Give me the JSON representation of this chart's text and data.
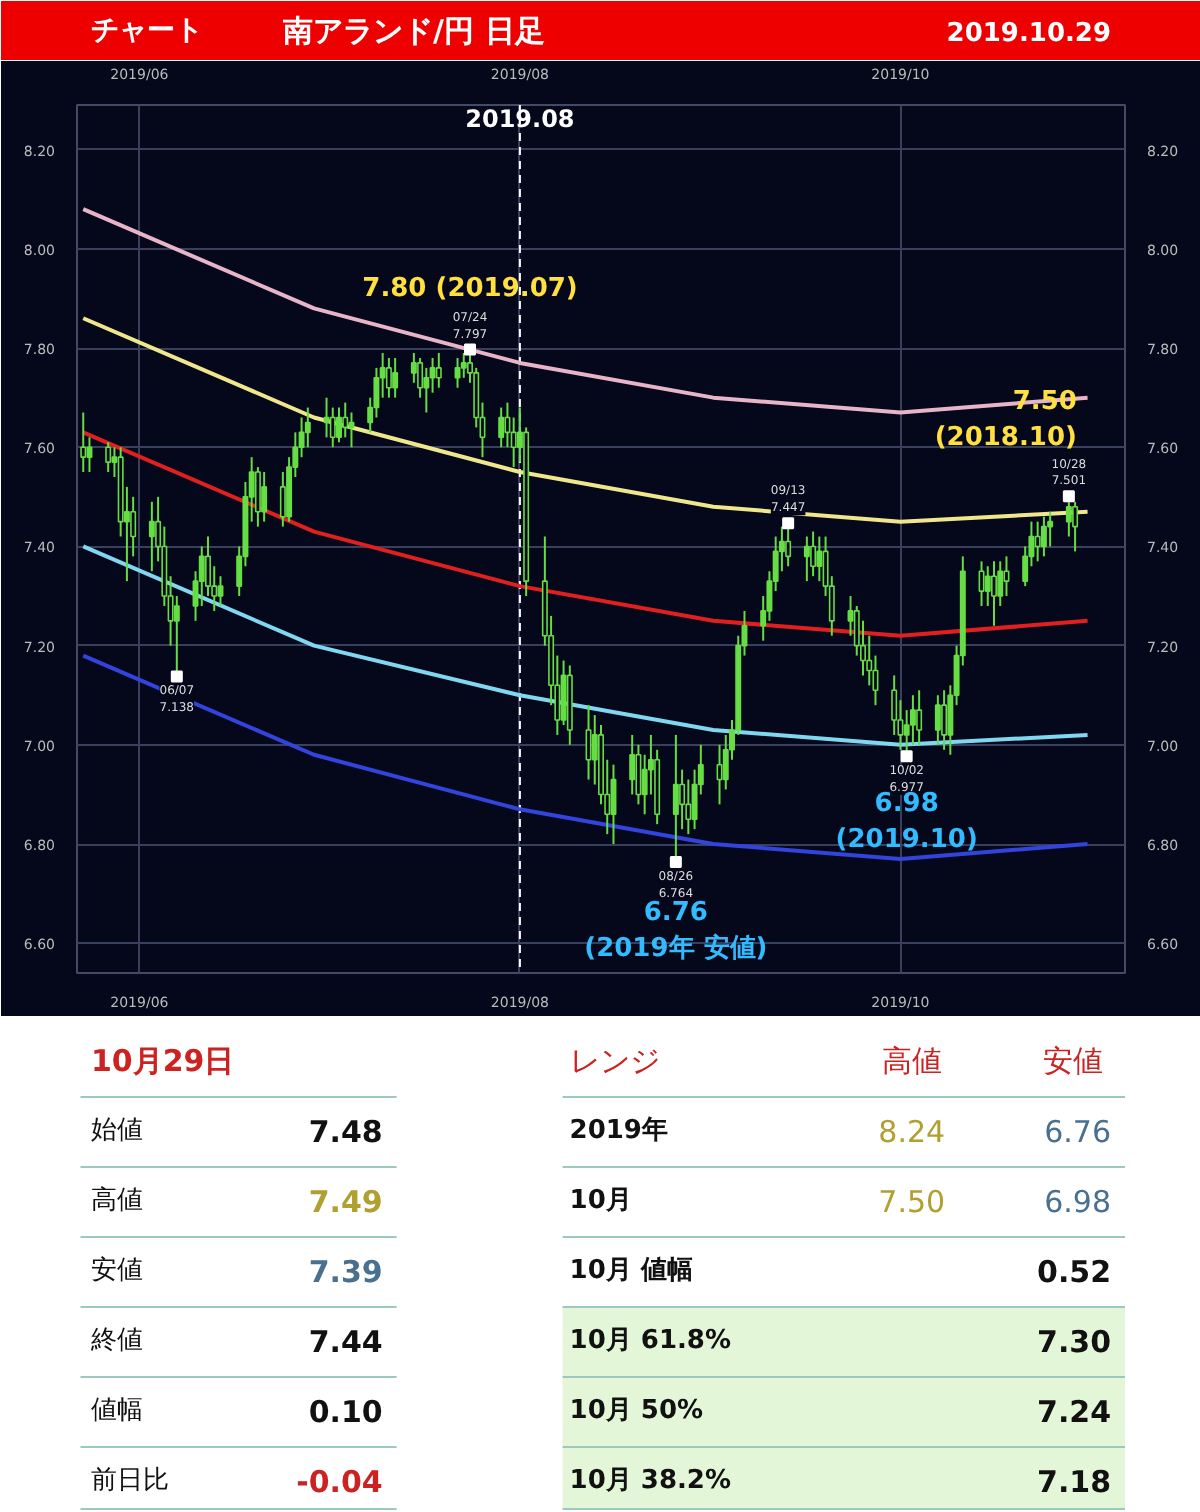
{
  "chart_data": [
    {
      "type": "candlestick",
      "title": "南アランド/円 日足",
      "subtitle": "2019.10.29",
      "color": "#66dd44",
      "x": [
        "2019-05-23",
        "2019-05-24",
        "2019-05-27",
        "2019-05-28",
        "2019-05-29",
        "2019-05-30",
        "2019-05-31",
        "2019-06-03",
        "2019-06-04",
        "2019-06-05",
        "2019-06-06",
        "2019-06-07",
        "2019-06-10",
        "2019-06-11",
        "2019-06-12",
        "2019-06-13",
        "2019-06-14",
        "2019-06-17",
        "2019-06-18",
        "2019-06-19",
        "2019-06-20",
        "2019-06-21",
        "2019-06-24",
        "2019-06-25",
        "2019-06-26",
        "2019-06-27",
        "2019-06-28",
        "2019-07-01",
        "2019-07-02",
        "2019-07-03",
        "2019-07-04",
        "2019-07-05",
        "2019-07-08",
        "2019-07-09",
        "2019-07-10",
        "2019-07-11",
        "2019-07-12",
        "2019-07-15",
        "2019-07-16",
        "2019-07-17",
        "2019-07-18",
        "2019-07-19",
        "2019-07-22",
        "2019-07-23",
        "2019-07-24",
        "2019-07-25",
        "2019-07-26",
        "2019-07-29",
        "2019-07-30",
        "2019-07-31",
        "2019-08-01",
        "2019-08-02",
        "2019-08-05",
        "2019-08-06",
        "2019-08-07",
        "2019-08-08",
        "2019-08-09",
        "2019-08-12",
        "2019-08-13",
        "2019-08-14",
        "2019-08-15",
        "2019-08-16",
        "2019-08-19",
        "2019-08-20",
        "2019-08-21",
        "2019-08-22",
        "2019-08-23",
        "2019-08-26",
        "2019-08-27",
        "2019-08-28",
        "2019-08-29",
        "2019-08-30",
        "2019-09-02",
        "2019-09-03",
        "2019-09-04",
        "2019-09-05",
        "2019-09-06",
        "2019-09-09",
        "2019-09-10",
        "2019-09-11",
        "2019-09-12",
        "2019-09-13",
        "2019-09-16",
        "2019-09-17",
        "2019-09-18",
        "2019-09-19",
        "2019-09-20",
        "2019-09-23",
        "2019-09-24",
        "2019-09-25",
        "2019-09-26",
        "2019-09-27",
        "2019-09-30",
        "2019-10-01",
        "2019-10-02",
        "2019-10-03",
        "2019-10-04",
        "2019-10-07",
        "2019-10-08",
        "2019-10-09",
        "2019-10-10",
        "2019-10-11",
        "2019-10-14",
        "2019-10-15",
        "2019-10-16",
        "2019-10-17",
        "2019-10-18",
        "2019-10-21",
        "2019-10-22",
        "2019-10-23",
        "2019-10-24",
        "2019-10-25",
        "2019-10-28",
        "2019-10-29"
      ],
      "ohlc": [
        [
          7.6,
          7.67,
          7.55,
          7.58
        ],
        [
          7.58,
          7.62,
          7.55,
          7.6
        ],
        [
          7.6,
          7.61,
          7.55,
          7.57
        ],
        [
          7.57,
          7.6,
          7.54,
          7.58
        ],
        [
          7.58,
          7.6,
          7.42,
          7.45
        ],
        [
          7.45,
          7.52,
          7.33,
          7.47
        ],
        [
          7.47,
          7.5,
          7.38,
          7.42
        ],
        [
          7.42,
          7.49,
          7.35,
          7.45
        ],
        [
          7.45,
          7.5,
          7.37,
          7.4
        ],
        [
          7.4,
          7.44,
          7.28,
          7.3
        ],
        [
          7.3,
          7.34,
          7.2,
          7.25
        ],
        [
          7.25,
          7.3,
          7.138,
          7.28
        ],
        [
          7.28,
          7.35,
          7.25,
          7.33
        ],
        [
          7.33,
          7.4,
          7.28,
          7.38
        ],
        [
          7.38,
          7.42,
          7.3,
          7.32
        ],
        [
          7.32,
          7.36,
          7.27,
          7.3
        ],
        [
          7.3,
          7.34,
          7.28,
          7.32
        ],
        [
          7.32,
          7.4,
          7.3,
          7.38
        ],
        [
          7.38,
          7.53,
          7.36,
          7.5
        ],
        [
          7.5,
          7.58,
          7.45,
          7.55
        ],
        [
          7.55,
          7.56,
          7.44,
          7.47
        ],
        [
          7.47,
          7.55,
          7.45,
          7.52
        ],
        [
          7.52,
          7.55,
          7.44,
          7.46
        ],
        [
          7.46,
          7.58,
          7.45,
          7.56
        ],
        [
          7.56,
          7.63,
          7.54,
          7.6
        ],
        [
          7.6,
          7.66,
          7.58,
          7.63
        ],
        [
          7.63,
          7.68,
          7.6,
          7.65
        ],
        [
          7.65,
          7.7,
          7.62,
          7.66
        ],
        [
          7.66,
          7.68,
          7.6,
          7.62
        ],
        [
          7.62,
          7.68,
          7.61,
          7.66
        ],
        [
          7.66,
          7.69,
          7.62,
          7.64
        ],
        [
          7.64,
          7.67,
          7.6,
          7.65
        ],
        [
          7.65,
          7.7,
          7.63,
          7.68
        ],
        [
          7.68,
          7.76,
          7.66,
          7.74
        ],
        [
          7.74,
          7.79,
          7.7,
          7.76
        ],
        [
          7.76,
          7.78,
          7.7,
          7.72
        ],
        [
          7.72,
          7.78,
          7.7,
          7.75
        ],
        [
          7.75,
          7.79,
          7.73,
          7.77
        ],
        [
          7.77,
          7.78,
          7.7,
          7.72
        ],
        [
          7.72,
          7.76,
          7.67,
          7.74
        ],
        [
          7.74,
          7.78,
          7.71,
          7.76
        ],
        [
          7.76,
          7.79,
          7.72,
          7.74
        ],
        [
          7.74,
          7.78,
          7.72,
          7.76
        ],
        [
          7.76,
          7.79,
          7.74,
          7.77
        ],
        [
          7.77,
          7.797,
          7.73,
          7.75
        ],
        [
          7.75,
          7.76,
          7.64,
          7.66
        ],
        [
          7.66,
          7.69,
          7.58,
          7.62
        ],
        [
          7.62,
          7.68,
          7.6,
          7.66
        ],
        [
          7.66,
          7.69,
          7.6,
          7.63
        ],
        [
          7.63,
          7.66,
          7.56,
          7.6
        ],
        [
          7.6,
          7.68,
          7.57,
          7.63
        ],
        [
          7.63,
          7.64,
          7.3,
          7.33
        ],
        [
          7.33,
          7.42,
          7.2,
          7.22
        ],
        [
          7.22,
          7.26,
          7.08,
          7.12
        ],
        [
          7.12,
          7.18,
          7.02,
          7.05
        ],
        [
          7.05,
          7.17,
          7.04,
          7.14
        ],
        [
          7.14,
          7.16,
          7.0,
          7.03
        ],
        [
          7.03,
          7.08,
          6.93,
          6.97
        ],
        [
          6.97,
          7.06,
          6.92,
          7.02
        ],
        [
          7.02,
          7.04,
          6.88,
          6.9
        ],
        [
          6.9,
          6.97,
          6.82,
          6.86
        ],
        [
          6.86,
          6.96,
          6.8,
          6.93
        ],
        [
          6.93,
          7.02,
          6.9,
          6.98
        ],
        [
          6.98,
          7.0,
          6.88,
          6.9
        ],
        [
          6.9,
          6.98,
          6.86,
          6.95
        ],
        [
          6.95,
          7.02,
          6.9,
          6.97
        ],
        [
          6.97,
          6.99,
          6.84,
          6.86
        ],
        [
          6.86,
          7.02,
          6.764,
          6.92
        ],
        [
          6.92,
          6.95,
          6.83,
          6.88
        ],
        [
          6.88,
          6.93,
          6.82,
          6.85
        ],
        [
          6.85,
          6.95,
          6.83,
          6.92
        ],
        [
          6.92,
          7.0,
          6.9,
          6.96
        ],
        [
          6.96,
          7.0,
          6.88,
          6.93
        ],
        [
          6.93,
          7.02,
          6.91,
          6.99
        ],
        [
          6.99,
          7.05,
          6.97,
          7.03
        ],
        [
          7.03,
          7.22,
          7.02,
          7.2
        ],
        [
          7.2,
          7.27,
          7.18,
          7.24
        ],
        [
          7.24,
          7.3,
          7.21,
          7.27
        ],
        [
          7.27,
          7.35,
          7.25,
          7.33
        ],
        [
          7.33,
          7.42,
          7.31,
          7.39
        ],
        [
          7.39,
          7.44,
          7.35,
          7.41
        ],
        [
          7.41,
          7.447,
          7.36,
          7.38
        ],
        [
          7.38,
          7.42,
          7.33,
          7.4
        ],
        [
          7.4,
          7.43,
          7.34,
          7.36
        ],
        [
          7.36,
          7.42,
          7.33,
          7.39
        ],
        [
          7.39,
          7.42,
          7.3,
          7.32
        ],
        [
          7.32,
          7.34,
          7.22,
          7.25
        ],
        [
          7.25,
          7.3,
          7.22,
          7.27
        ],
        [
          7.27,
          7.28,
          7.18,
          7.2
        ],
        [
          7.2,
          7.25,
          7.14,
          7.17
        ],
        [
          7.17,
          7.22,
          7.12,
          7.15
        ],
        [
          7.15,
          7.18,
          7.08,
          7.11
        ],
        [
          7.11,
          7.14,
          7.02,
          7.05
        ],
        [
          7.05,
          7.09,
          6.99,
          7.02
        ],
        [
          7.02,
          7.07,
          6.977,
          7.04
        ],
        [
          7.04,
          7.1,
          7.0,
          7.07
        ],
        [
          7.07,
          7.11,
          7.0,
          7.03
        ],
        [
          7.03,
          7.1,
          7.0,
          7.08
        ],
        [
          7.08,
          7.11,
          6.99,
          7.02
        ],
        [
          7.02,
          7.12,
          6.98,
          7.1
        ],
        [
          7.1,
          7.2,
          7.08,
          7.18
        ],
        [
          7.18,
          7.38,
          7.16,
          7.35
        ],
        [
          7.35,
          7.37,
          7.28,
          7.31
        ],
        [
          7.31,
          7.36,
          7.28,
          7.34
        ],
        [
          7.34,
          7.37,
          7.24,
          7.3
        ],
        [
          7.3,
          7.37,
          7.28,
          7.35
        ],
        [
          7.35,
          7.38,
          7.3,
          7.33
        ],
        [
          7.33,
          7.4,
          7.32,
          7.38
        ],
        [
          7.38,
          7.45,
          7.36,
          7.42
        ],
        [
          7.42,
          7.45,
          7.37,
          7.4
        ],
        [
          7.4,
          7.46,
          7.38,
          7.44
        ],
        [
          7.44,
          7.47,
          7.4,
          7.45
        ],
        [
          7.45,
          7.501,
          7.42,
          7.48
        ],
        [
          7.48,
          7.49,
          7.39,
          7.44
        ]
      ],
      "series": [
        {
          "type": "line",
          "color": "#e8b4c8",
          "x": [
            "2019-05-23",
            "2019-06-29",
            "2019-08-01",
            "2019-09-01",
            "2019-10-01",
            "2019-10-31"
          ],
          "values": [
            8.08,
            7.88,
            7.77,
            7.7,
            7.67,
            7.7
          ]
        },
        {
          "type": "line",
          "color": "#f0e68c",
          "x": [
            "2019-05-23",
            "2019-06-29",
            "2019-08-01",
            "2019-09-01",
            "2019-10-01",
            "2019-10-31"
          ],
          "values": [
            7.86,
            7.66,
            7.55,
            7.48,
            7.45,
            7.47
          ]
        },
        {
          "type": "line",
          "color": "#e02020",
          "x": [
            "2019-05-23",
            "2019-06-29",
            "2019-08-01",
            "2019-09-01",
            "2019-10-01",
            "2019-10-31"
          ],
          "values": [
            7.63,
            7.43,
            7.32,
            7.25,
            7.22,
            7.25
          ]
        },
        {
          "type": "line",
          "color": "#80d8f0",
          "x": [
            "2019-05-23",
            "2019-06-29",
            "2019-08-01",
            "2019-09-01",
            "2019-10-01",
            "2019-10-31"
          ],
          "values": [
            7.4,
            7.2,
            7.1,
            7.03,
            7.0,
            7.02
          ]
        },
        {
          "type": "line",
          "color": "#3344dd",
          "x": [
            "2019-05-23",
            "2019-06-29",
            "2019-08-01",
            "2019-09-01",
            "2019-10-01",
            "2019-10-31"
          ],
          "values": [
            7.18,
            6.98,
            6.87,
            6.8,
            6.77,
            6.8
          ]
        }
      ],
      "xlim": [
        "2019-05-22",
        "2019-11-06"
      ],
      "ylim": [
        6.54,
        8.29
      ],
      "xticks": [
        {
          "value": "2019-06-01",
          "label": "2019/06"
        },
        {
          "value": "2019-08-01",
          "label": "2019/08"
        },
        {
          "value": "2019-10-01",
          "label": "2019/10"
        }
      ],
      "x2lim": [
        "2019-05-22",
        "2019-11-06"
      ],
      "x2ticks": [
        {
          "value": "2019-06-01",
          "label": "2019/06"
        },
        {
          "value": "2019-08-01",
          "label": "2019/08"
        },
        {
          "value": "2019-10-01",
          "label": "2019/10"
        }
      ],
      "yticks": [
        {
          "value": 6.6,
          "label": "6.60"
        },
        {
          "value": 6.8,
          "label": "6.80"
        },
        {
          "value": 7.0,
          "label": "7.00"
        },
        {
          "value": 7.2,
          "label": "7.20"
        },
        {
          "value": 7.4,
          "label": "7.40"
        },
        {
          "value": 7.6,
          "label": "7.60"
        },
        {
          "value": 7.8,
          "label": "7.80"
        },
        {
          "value": 8.0,
          "label": "8.00"
        },
        {
          "value": 8.2,
          "label": "8.20"
        }
      ],
      "y2lim": [
        6.54,
        8.29
      ],
      "y2ticks": [
        {
          "value": 6.6,
          "label": "6.60"
        },
        {
          "value": 6.8,
          "label": "6.80"
        },
        {
          "value": 7.0,
          "label": "7.00"
        },
        {
          "value": 7.2,
          "label": "7.20"
        },
        {
          "value": 7.4,
          "label": "7.40"
        },
        {
          "value": 7.6,
          "label": "7.60"
        },
        {
          "value": 7.8,
          "label": "7.80"
        },
        {
          "value": 8.0,
          "label": "8.00"
        },
        {
          "value": 8.2,
          "label": "8.20"
        }
      ],
      "grid": true,
      "ref_lines": [
        {
          "axis": "x",
          "value": "2019-08-01",
          "label": "2019.08",
          "color": "#ffffff",
          "line_style": "dashed"
        }
      ],
      "annotations": [
        "チャート",
        {
          "text": "06/07\n7.138",
          "x": "2019-06-07",
          "y": 7.138
        },
        {
          "text": "07/24\n7.797",
          "x": "2019-07-24",
          "y": 7.797
        },
        {
          "text": "08/26\n6.764",
          "x": "2019-08-26",
          "y": 6.764
        },
        {
          "text": "09/13\n7.447",
          "x": "2019-09-13",
          "y": 7.447
        },
        {
          "text": "10/02\n6.977",
          "x": "2019-10-02",
          "y": 6.977
        },
        {
          "text": "10/28\n7.501",
          "x": "2019-10-28",
          "y": 7.501
        },
        {
          "text": "7.80 (2019.07)",
          "x": "2019-07-24",
          "y": 7.8
        },
        {
          "text": "6.76\n(2019年 安値)",
          "x": "2019-08-26",
          "y": 6.76
        },
        {
          "text": "6.98\n(2019.10)",
          "x": "2019-10-02",
          "y": 6.98
        },
        {
          "text": "7.50\n(2018.10)",
          "x": "2019-10-28",
          "y": 7.5
        }
      ]
    },
    {
      "type": "other",
      "annotations": [
        "10月29日",
        "始値",
        "7.48",
        "高値",
        "7.49",
        "安値",
        "7.39",
        "終値",
        "7.44",
        "値幅",
        "0.10",
        "前日比",
        "-0.04",
        "レンジ",
        "高値",
        "安値",
        "2019年",
        "8.24",
        "6.76",
        "10月",
        "7.50",
        "6.98",
        "10月 値幅",
        "0.52",
        "10月  61.8%",
        "7.30",
        "10月  50%",
        "7.24",
        "10月  38.2%",
        "7.18"
      ]
    }
  ]
}
